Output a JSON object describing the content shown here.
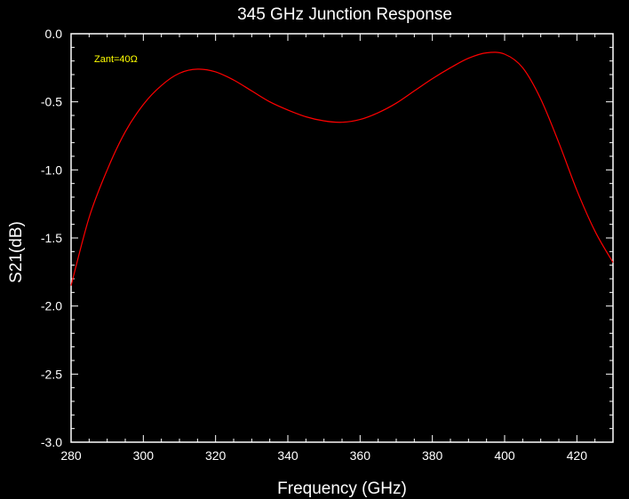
{
  "chart_data": {
    "type": "line",
    "title": "345 GHz Junction Response",
    "xlabel": "Frequency (GHz)",
    "ylabel": "S21(dB)",
    "xlim": [
      280,
      430
    ],
    "ylim": [
      -3.0,
      0.0
    ],
    "xticks": [
      280,
      300,
      320,
      340,
      360,
      380,
      400,
      420
    ],
    "xtick_labels": [
      "280",
      "300",
      "320",
      "340",
      "360",
      "380",
      "400",
      "420"
    ],
    "yticks": [
      0.0,
      -0.5,
      -1.0,
      -1.5,
      -2.0,
      -2.5,
      -3.0
    ],
    "ytick_labels": [
      "0.0",
      "-0.5",
      "-1.0",
      "-1.5",
      "-2.0",
      "-2.5",
      "-3.0"
    ],
    "grid": false,
    "background_color": "#000000",
    "axes_color": "#ffffff",
    "annotation": {
      "text": "Zant=40Ω",
      "color": "#ffff00"
    },
    "series": [
      {
        "color": "#ff0000",
        "x": [
          280,
          285,
          290,
          295,
          300,
          305,
          310,
          315,
          320,
          325,
          330,
          335,
          340,
          345,
          350,
          355,
          360,
          365,
          370,
          375,
          380,
          385,
          390,
          395,
          400,
          405,
          410,
          415,
          420,
          425,
          430
        ],
        "y": [
          -1.85,
          -1.35,
          -1.0,
          -0.72,
          -0.52,
          -0.38,
          -0.29,
          -0.26,
          -0.28,
          -0.34,
          -0.42,
          -0.5,
          -0.56,
          -0.61,
          -0.64,
          -0.65,
          -0.63,
          -0.58,
          -0.51,
          -0.42,
          -0.33,
          -0.25,
          -0.18,
          -0.14,
          -0.15,
          -0.25,
          -0.48,
          -0.8,
          -1.15,
          -1.45,
          -1.68
        ]
      }
    ]
  }
}
